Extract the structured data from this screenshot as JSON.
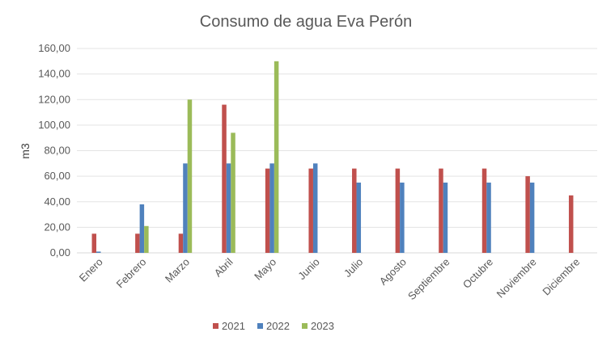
{
  "chart_data": {
    "type": "bar",
    "title": "Consumo de agua Eva Perón",
    "xlabel": "",
    "ylabel": "m3",
    "ylim": [
      0,
      160
    ],
    "yticks": [
      "0,00",
      "20,00",
      "40,00",
      "60,00",
      "80,00",
      "100,00",
      "120,00",
      "140,00",
      "160,00"
    ],
    "grid": true,
    "legend_position": "bottom",
    "categories": [
      "Enero",
      "Febrero",
      "Marzo",
      "Abril",
      "Mayo",
      "Junio",
      "Julio",
      "Agosto",
      "Septiembre",
      "Octubre",
      "Noviembre",
      "Diciembre"
    ],
    "series": [
      {
        "name": "2021",
        "color": "#c0504d",
        "values": [
          15,
          15,
          15,
          116,
          66,
          66,
          66,
          66,
          66,
          66,
          60,
          45
        ]
      },
      {
        "name": "2022",
        "color": "#4f81bd",
        "values": [
          1,
          38,
          70,
          70,
          70,
          70,
          55,
          55,
          55,
          55,
          55,
          null
        ]
      },
      {
        "name": "2023",
        "color": "#9bbb59",
        "values": [
          null,
          21,
          120,
          94,
          150,
          null,
          null,
          null,
          null,
          null,
          null,
          null
        ]
      }
    ]
  }
}
